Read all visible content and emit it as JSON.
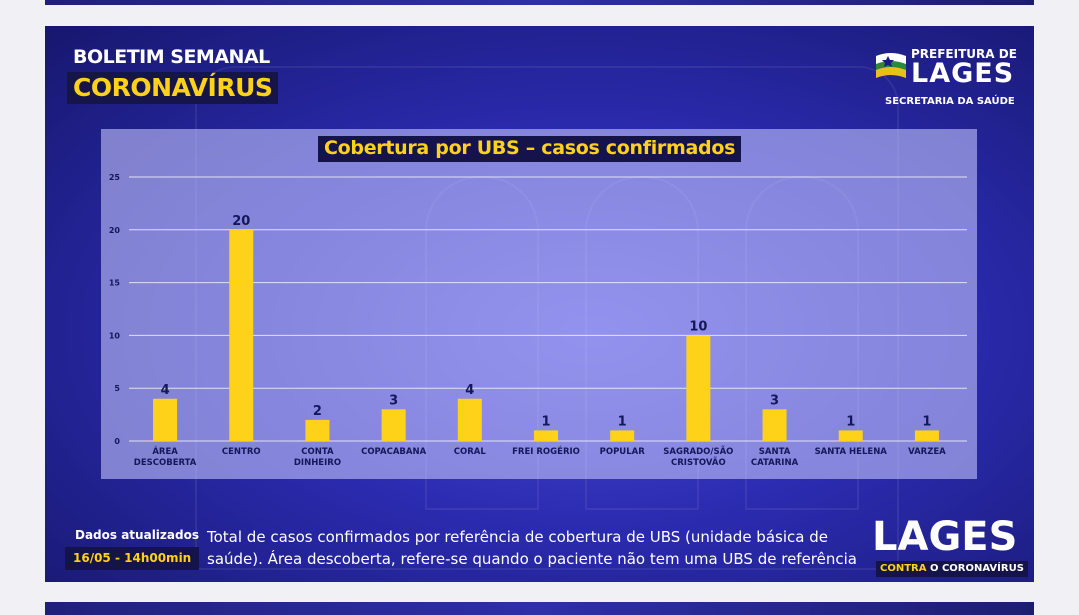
{
  "header": {
    "title": "BOLETIM SEMANAL",
    "subtitle": "CORONAVÍRUS"
  },
  "logo": {
    "prefeitura": "PREFEITURA DE",
    "city": "LAGES",
    "secretaria": "SECRETARIA DA SAÚDE"
  },
  "footer": {
    "updated_label": "Dados atualizados",
    "updated_date": "16/05 - 14h00min",
    "note_line1": "Total de casos confirmados por referência de cobertura de UBS (unidade básica de",
    "note_line2": "saúde). Área descoberta, refere-se quando o paciente não tem uma UBS de referência",
    "brand": "LAGES",
    "tagline_a": "CONTRA",
    "tagline_b": " O CORONAVÍRUS"
  },
  "colors": {
    "bar": "#ffd21a",
    "label": "#16165a",
    "background": "#2b2bb0",
    "accent": "#ffd21a"
  },
  "chart_data": {
    "type": "bar",
    "title": "Cobertura por UBS – casos confirmados",
    "categories": [
      [
        "ÁREA",
        "DESCOBERTA"
      ],
      [
        "CENTRO"
      ],
      [
        "CONTA",
        "DINHEIRO"
      ],
      [
        "COPACABANA"
      ],
      [
        "CORAL"
      ],
      [
        "FREI ROGÉRIO"
      ],
      [
        "POPULAR"
      ],
      [
        "SAGRADO/SÃO",
        "CRISTOVÃO"
      ],
      [
        "SANTA",
        "CATARINA"
      ],
      [
        "SANTA HELENA"
      ],
      [
        "VARZEA"
      ]
    ],
    "values": [
      4,
      20,
      2,
      3,
      4,
      1,
      1,
      10,
      3,
      1,
      1
    ],
    "yticks": [
      0,
      5,
      10,
      15,
      20,
      25
    ],
    "ylim": [
      0,
      25
    ],
    "grid": true,
    "data_labels": true
  }
}
